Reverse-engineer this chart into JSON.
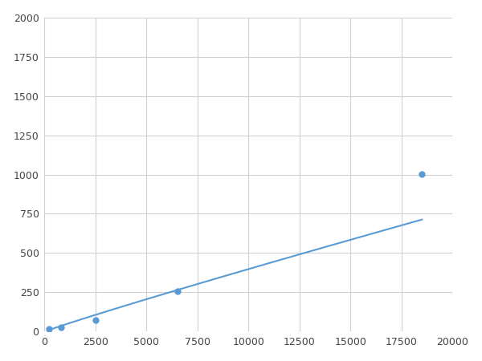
{
  "x": [
    200,
    800,
    2500,
    6500,
    18500
  ],
  "y": [
    15,
    25,
    75,
    255,
    1005
  ],
  "line_color": "#5b9bd5",
  "marker_color": "#5b9bd5",
  "marker_size": 5,
  "xlim": [
    0,
    20000
  ],
  "ylim": [
    0,
    2000
  ],
  "xticks": [
    0,
    2500,
    5000,
    7500,
    10000,
    12500,
    15000,
    17500,
    20000
  ],
  "yticks": [
    0,
    250,
    500,
    750,
    1000,
    1250,
    1500,
    1750,
    2000
  ],
  "grid_color": "#d0d0d0",
  "background_color": "#ffffff",
  "line_width": 1.5
}
